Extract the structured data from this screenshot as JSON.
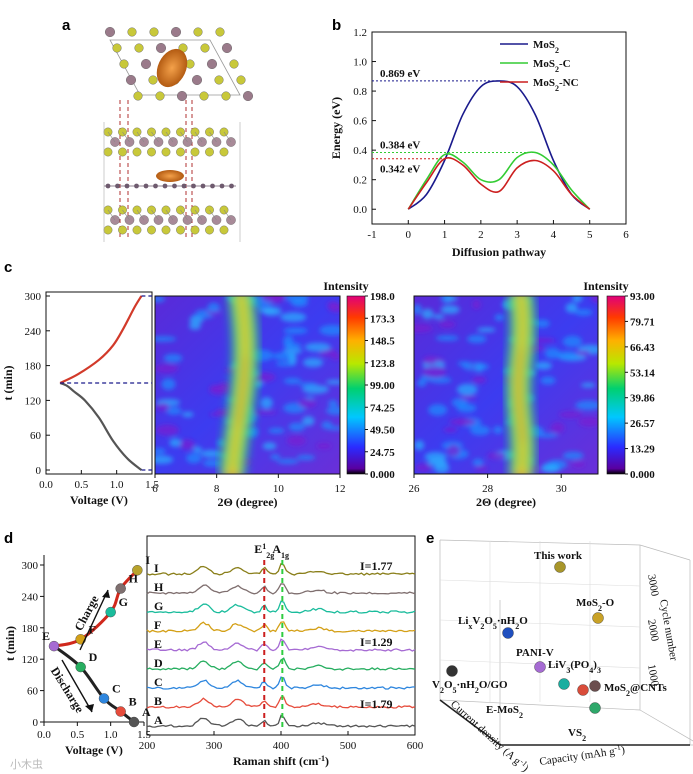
{
  "panels": {
    "a": "a",
    "b": "b",
    "c": "c",
    "d": "d",
    "e": "e"
  },
  "colors": {
    "mos2": "#1a1a8c",
    "mos2c": "#33cc33",
    "mos2nc": "#cc1f1f",
    "gold": "#c9a227"
  },
  "watermark": "小木虫",
  "chart_data": [
    {
      "id": "b",
      "type": "line",
      "xlabel": "Diffusion pathway",
      "ylabel": "Energy (eV)",
      "xlim": [
        -1,
        6
      ],
      "ylim": [
        -0.1,
        1.2
      ],
      "xticks": [
        "-1",
        "0",
        "1",
        "2",
        "3",
        "4",
        "5",
        "6"
      ],
      "yticks": [
        "0.0",
        "0.2",
        "0.4",
        "0.6",
        "0.8",
        "1.0",
        "1.2"
      ],
      "series": [
        {
          "name": "MoS2",
          "legend": [
            "MoS",
            "2",
            ""
          ],
          "color": "#1a1a8c",
          "x": [
            0,
            0.5,
            1,
            1.5,
            2,
            2.5,
            3,
            3.5,
            4,
            4.5,
            5
          ],
          "y": [
            0,
            0.1,
            0.33,
            0.64,
            0.83,
            0.869,
            0.83,
            0.64,
            0.33,
            0.1,
            0
          ]
        },
        {
          "name": "MoS2-C",
          "legend": [
            "MoS",
            "2",
            "-C"
          ],
          "color": "#33cc33",
          "x": [
            0,
            0.5,
            1,
            1.5,
            2,
            2.5,
            3,
            3.5,
            4,
            4.5,
            5
          ],
          "y": [
            0,
            0.2,
            0.37,
            0.32,
            0.2,
            0.2,
            0.35,
            0.384,
            0.3,
            0.13,
            0
          ]
        },
        {
          "name": "MoS2-NC",
          "legend": [
            "MoS",
            "2",
            "-NC"
          ],
          "color": "#cc1f1f",
          "x": [
            0,
            0.5,
            1,
            1.5,
            2,
            2.5,
            3,
            3.5,
            4,
            4.5,
            5
          ],
          "y": [
            0,
            0.18,
            0.342,
            0.3,
            0.17,
            0.12,
            0.28,
            0.33,
            0.26,
            0.1,
            0
          ]
        }
      ],
      "annotations": [
        {
          "text": "0.869 eV",
          "value": 0.869,
          "color": "#1a1a8c"
        },
        {
          "text": "0.384 eV",
          "value": 0.384,
          "color": "#33cc33"
        },
        {
          "text": "0.342 eV",
          "value": 0.342,
          "color": "#cc1f1f"
        }
      ]
    },
    {
      "id": "c-voltage",
      "type": "line",
      "xlabel": "Voltage (V)",
      "ylabel": "t (min)",
      "xlim": [
        0,
        1.5
      ],
      "ylim": [
        0,
        300
      ],
      "xticks": [
        "0.0",
        "0.5",
        "1.0",
        "1.5"
      ],
      "yticks": [
        "0",
        "60",
        "120",
        "180",
        "240",
        "300"
      ],
      "series": [
        {
          "name": "discharge",
          "color": "#555555",
          "x": [
            1.35,
            1.15,
            0.95,
            0.75,
            0.55,
            0.4,
            0.3,
            0.2
          ],
          "y": [
            0,
            20,
            50,
            90,
            120,
            135,
            145,
            150
          ]
        },
        {
          "name": "charge",
          "color": "#d23a2a",
          "x": [
            0.2,
            0.45,
            0.75,
            0.95,
            1.1,
            1.25,
            1.35
          ],
          "y": [
            150,
            165,
            190,
            215,
            245,
            280,
            300
          ]
        }
      ]
    },
    {
      "id": "c-map1",
      "type": "heatmap",
      "xlabel": "2Θ (degree)",
      "xlim": [
        6,
        12
      ],
      "xticks": [
        "6",
        "8",
        "10",
        "12"
      ],
      "colorbar_title": "Intensity",
      "colorbar_ticks": [
        "198.0",
        "173.3",
        "148.5",
        "123.8",
        "99.00",
        "74.25",
        "49.50",
        "24.75",
        "0.000"
      ]
    },
    {
      "id": "c-map2",
      "type": "heatmap",
      "xlabel": "2Θ (degree)",
      "xlim": [
        26,
        31
      ],
      "xticks": [
        "26",
        "28",
        "30"
      ],
      "colorbar_title": "Intensity",
      "colorbar_ticks": [
        "93.00",
        "79.71",
        "66.43",
        "53.14",
        "39.86",
        "26.57",
        "13.29",
        "0.000"
      ]
    },
    {
      "id": "d-voltage",
      "type": "scatter",
      "xlabel": "Voltage (V)",
      "ylabel": "t (min)",
      "xlim": [
        0,
        1.5
      ],
      "ylim": [
        0,
        300
      ],
      "xticks": [
        "0.0",
        "0.5",
        "1.0",
        "1.5"
      ],
      "yticks": [
        "0",
        "60",
        "120",
        "180",
        "240",
        "300"
      ],
      "arrow_labels": [
        "Charge",
        "Discharge"
      ],
      "points": [
        {
          "label": "A",
          "x": 1.35,
          "y": 0,
          "color": "#555555"
        },
        {
          "label": "B",
          "x": 1.15,
          "y": 20,
          "color": "#e64c3c"
        },
        {
          "label": "C",
          "x": 0.9,
          "y": 45,
          "color": "#2e86de"
        },
        {
          "label": "D",
          "x": 0.55,
          "y": 105,
          "color": "#27ae60"
        },
        {
          "label": "E",
          "x": 0.15,
          "y": 145,
          "color": "#a66bd3"
        },
        {
          "label": "F",
          "x": 0.55,
          "y": 158,
          "color": "#d4a017"
        },
        {
          "label": "G",
          "x": 1.0,
          "y": 210,
          "color": "#1abc9c"
        },
        {
          "label": "H",
          "x": 1.15,
          "y": 255,
          "color": "#7f6f6f"
        },
        {
          "label": "I",
          "x": 1.4,
          "y": 290,
          "color": "#b8a32b"
        }
      ]
    },
    {
      "id": "d-raman",
      "type": "line",
      "xlabel": "Raman shift (cm",
      "xlabel_sup": "-1",
      "xlabel_tail": ")",
      "xlim": [
        200,
        600
      ],
      "xticks": [
        "200",
        "300",
        "400",
        "500",
        "600"
      ],
      "peak_labels": [
        {
          "text": "E",
          "sup": "1",
          "sub": "2g",
          "x": 375,
          "color": "#cc1f1f"
        },
        {
          "text": "A",
          "sub": "1g",
          "x": 402,
          "color": "#2ecc40"
        }
      ],
      "current_labels": [
        {
          "text": "I=1.77",
          "color": "#8a7f1a"
        },
        {
          "text": "I=1.29",
          "color": "#b07fd6"
        },
        {
          "text": "I=1.79",
          "color": "#555555"
        }
      ],
      "traces": [
        "I",
        "H",
        "G",
        "F",
        "E",
        "D",
        "C",
        "B",
        "A"
      ]
    },
    {
      "id": "e",
      "type": "scatter",
      "xlabel": "Capacity (mAh g",
      "xlabel_sup": "-1",
      "xlabel_tail": ")",
      "ylabel": "Current density (A g",
      "ylabel_sup": "-1",
      "ylabel_tail": ")",
      "zlabel": "Cycle number",
      "zticks": [
        "1000",
        "2000",
        "3000"
      ],
      "points": [
        {
          "name": "This work",
          "color": "#a8962a"
        },
        {
          "name": "MoS2-O",
          "label_parts": [
            "MoS",
            "2",
            "-O"
          ],
          "color": "#c9a227"
        },
        {
          "name": "LixV2O5·nH2O",
          "label_parts": [
            "Li",
            "x",
            "V",
            "2",
            "O",
            "5",
            "·nH",
            "2",
            "O"
          ],
          "color": "#1f4fbf"
        },
        {
          "name": "PANI-V",
          "color": "#a66bd3"
        },
        {
          "name": "V2O5·nH2O/GO",
          "label_parts": [
            "V",
            "2",
            "O",
            "5",
            "·nH",
            "2",
            "O/GO"
          ],
          "color": "#333333"
        },
        {
          "name": "LiV3(PO4)3",
          "label_parts": [
            "LiV",
            "3",
            "(PO",
            "4",
            ")",
            "3"
          ],
          "color": "#d94c3a"
        },
        {
          "name": "E-MoS2",
          "label_parts": [
            "E-MoS",
            "2",
            ""
          ],
          "color": "#1aaea0"
        },
        {
          "name": "MoS2@CNTs",
          "label_parts": [
            "MoS",
            "2",
            "@CNTs"
          ],
          "color": "#6b4e4e"
        },
        {
          "name": "VS2",
          "label_parts": [
            "VS",
            "2",
            ""
          ],
          "color": "#2ea86a"
        }
      ]
    }
  ]
}
